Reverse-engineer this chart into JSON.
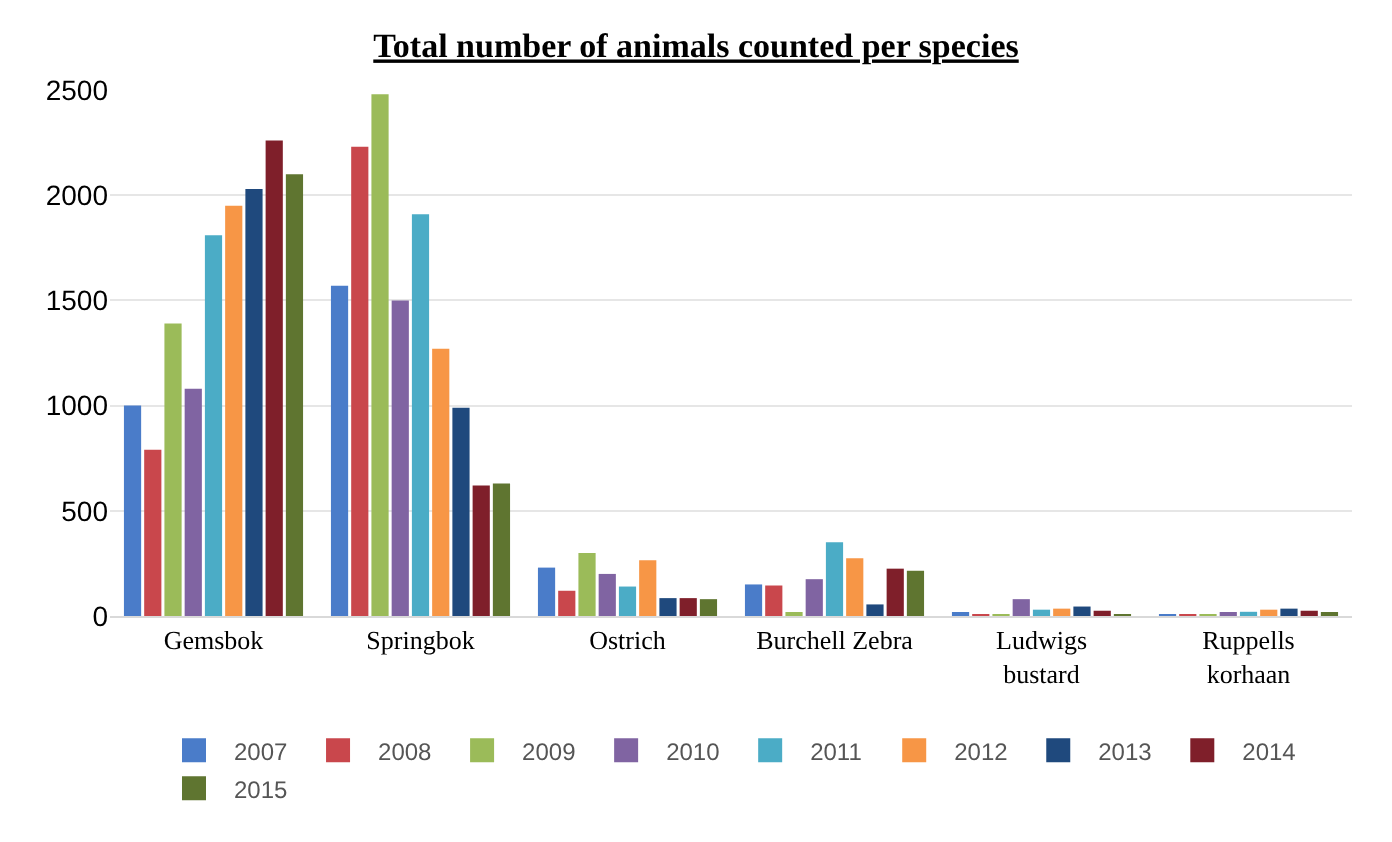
{
  "chart_data": {
    "type": "bar",
    "title": "Total number of animals counted per species",
    "categories": [
      "Gemsbok",
      "Springbok",
      "Ostrich",
      "Burchell Zebra",
      "Ludwigs bustard",
      "Ruppells korhaan"
    ],
    "series": [
      {
        "name": "2007",
        "color": "#4a7cc9",
        "values": [
          1000,
          1570,
          230,
          150,
          15,
          5
        ]
      },
      {
        "name": "2008",
        "color": "#c9474c",
        "values": [
          790,
          2230,
          120,
          145,
          8,
          3
        ]
      },
      {
        "name": "2009",
        "color": "#9bbb59",
        "values": [
          1390,
          2480,
          300,
          15,
          5,
          5
        ]
      },
      {
        "name": "2010",
        "color": "#8064a2",
        "values": [
          1080,
          1500,
          200,
          175,
          80,
          15
        ]
      },
      {
        "name": "2011",
        "color": "#4bacc6",
        "values": [
          1810,
          1910,
          140,
          350,
          30,
          20
        ]
      },
      {
        "name": "2012",
        "color": "#f79646",
        "values": [
          1950,
          1270,
          265,
          275,
          35,
          30
        ]
      },
      {
        "name": "2013",
        "color": "#1f497d",
        "values": [
          2030,
          990,
          85,
          55,
          45,
          35
        ]
      },
      {
        "name": "2014",
        "color": "#7f1f2a",
        "values": [
          2260,
          620,
          85,
          225,
          25,
          25
        ]
      },
      {
        "name": "2015",
        "color": "#5f7530",
        "values": [
          2100,
          630,
          80,
          215,
          5,
          10
        ]
      }
    ],
    "ylim": [
      0,
      2500
    ],
    "yticks": [
      0,
      500,
      1000,
      1500,
      2000,
      2500
    ],
    "grid": "y",
    "legend": "bottom"
  }
}
